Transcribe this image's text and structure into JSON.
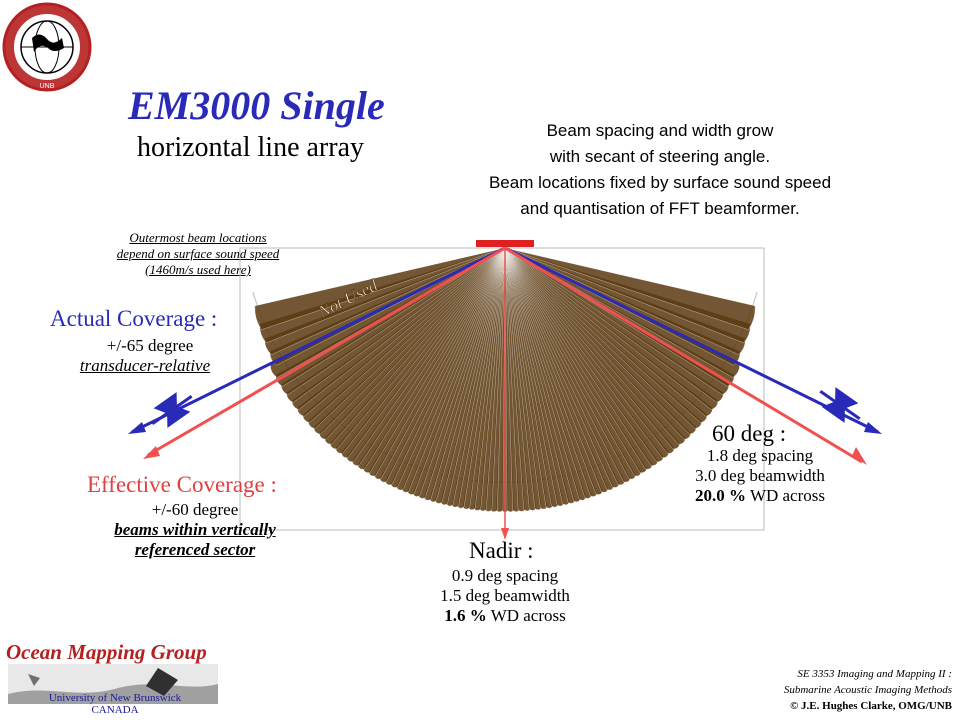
{
  "title": "EM3000 Single",
  "subtitle": "horizontal line array",
  "description": [
    "Beam spacing and width grow",
    "with secant of steering angle.",
    "Beam locations fixed by surface sound speed",
    "and quantisation of FFT beamformer."
  ],
  "note": [
    "Outermost beam locations",
    "depend on surface sound speed",
    "(1460m/s used here)"
  ],
  "not_used": "Not Used",
  "actual_coverage": {
    "label": "Actual Coverage :",
    "degree": "+/-65 degree",
    "qualifier": "transducer-relative"
  },
  "effective_coverage": {
    "label": "Effective Coverage :",
    "degree": "+/-60 degree",
    "qualifier_1": "beams within vertically",
    "qualifier_2": "referenced sector"
  },
  "outer_beam": {
    "label": "60 deg :",
    "spacing": "1.8 deg spacing",
    "beamwidth": "3.0 deg beamwidth",
    "wd_value": "20.0 %",
    "wd_text": "WD across"
  },
  "nadir": {
    "label": "Nadir :",
    "spacing": "0.9 deg spacing",
    "beamwidth": "1.5 deg beamwidth",
    "wd_value": "1.6 %",
    "wd_text": "WD across"
  },
  "logo": {
    "ring_text": "GEODESY AND GEOMATICS ENGINEERING",
    "bottom_text": "UNB"
  },
  "omg": {
    "name": "Ocean Mapping Group",
    "university": "University of New Brunswick",
    "country": "CANADA"
  },
  "footer": {
    "course_1": "SE 3353 Imaging and Mapping II :",
    "course_2": "Submarine Acoustic Imaging Methods",
    "credit": "© J.E. Hughes Clarke, OMG/UNB"
  },
  "colors": {
    "title_blue": "#2a2ab8",
    "actual_ray": "#2a2ab8",
    "effective_ray": "#f05050",
    "beam_fill": "#5a3a10",
    "transducer": "#e02020",
    "omg_red": "#b52020"
  }
}
